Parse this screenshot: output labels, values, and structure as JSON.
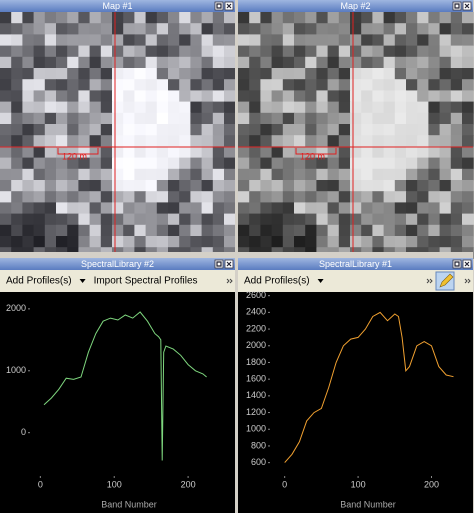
{
  "panels": [
    {
      "title": "Map #1",
      "scale_label": "120 m"
    },
    {
      "title": "Map #2",
      "scale_label": "120 m"
    },
    {
      "title": "SpectralLibrary #2",
      "toolbar": [
        "Add Profiles(s)",
        "Import Spectral Profiles"
      ]
    },
    {
      "title": "SpectralLibrary #1",
      "toolbar": [
        "Add Profiles(s)"
      ]
    }
  ],
  "chart_data": [
    {
      "type": "line",
      "x_label": "Band Number",
      "xlim": [
        -14,
        254
      ],
      "xticks": [
        0,
        100,
        200
      ],
      "ylim": [
        -700,
        2240
      ],
      "yticks": [
        0,
        1000,
        2000
      ],
      "series": [
        {
          "color": "#7ed67e",
          "x": [
            5,
            15,
            25,
            35,
            45,
            55,
            65,
            75,
            85,
            95,
            105,
            115,
            125,
            135,
            145,
            155,
            160,
            163,
            165,
            167,
            170,
            180,
            190,
            200,
            210,
            220,
            225
          ],
          "values": [
            450,
            560,
            700,
            880,
            860,
            900,
            1300,
            1600,
            1800,
            1850,
            1820,
            1900,
            1850,
            1950,
            1800,
            1600,
            1550,
            1500,
            -450,
            1300,
            1400,
            1350,
            1250,
            1100,
            1000,
            950,
            900
          ]
        }
      ]
    },
    {
      "type": "line",
      "x_label": "Band Number",
      "xlim": [
        -20,
        247
      ],
      "xticks": [
        0,
        100,
        200
      ],
      "ylim": [
        440,
        2620
      ],
      "yticks": [
        600,
        800,
        1000,
        1200,
        1400,
        1600,
        1800,
        2000,
        2200,
        2400,
        2600
      ],
      "series": [
        {
          "color": "#f0a030",
          "x": [
            0,
            10,
            20,
            30,
            40,
            50,
            60,
            70,
            80,
            90,
            100,
            110,
            120,
            130,
            140,
            150,
            155,
            160,
            165,
            170,
            180,
            190,
            200,
            210,
            220,
            230
          ],
          "values": [
            600,
            700,
            850,
            1100,
            1200,
            1250,
            1500,
            1800,
            2000,
            2080,
            2100,
            2200,
            2350,
            2400,
            2300,
            2380,
            2350,
            2100,
            1700,
            1750,
            2000,
            2050,
            2000,
            1750,
            1650,
            1630
          ]
        }
      ]
    }
  ]
}
